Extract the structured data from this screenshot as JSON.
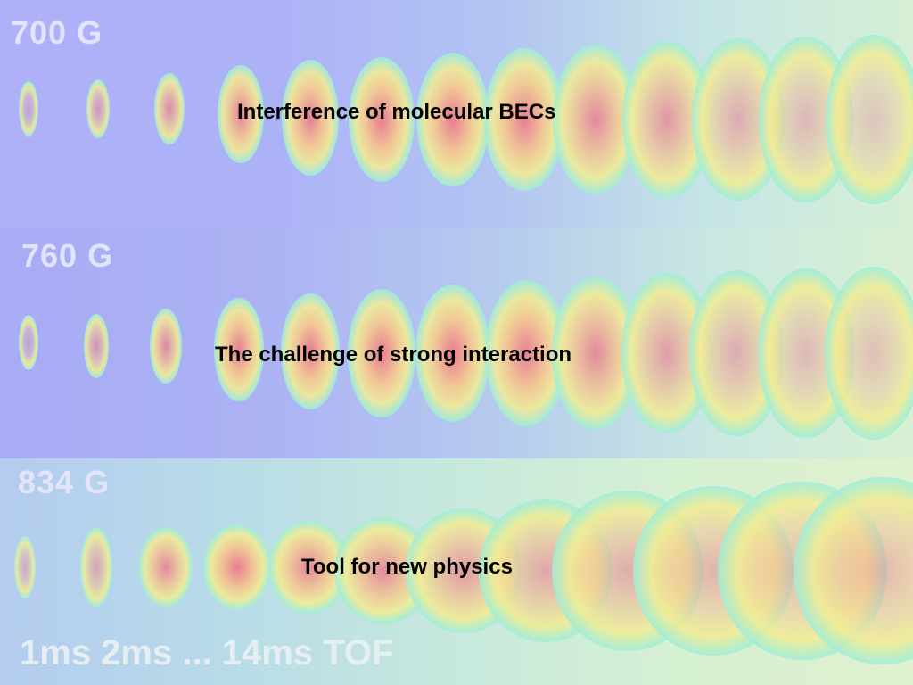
{
  "slide": {
    "rows": [
      {
        "field_label": "700 G",
        "caption": "Interference of molecular BECs"
      },
      {
        "field_label": "760 G",
        "caption": "The challenge of strong interaction"
      },
      {
        "field_label": "834 G",
        "caption": "Tool for new physics"
      }
    ],
    "tof_label": "1ms 2ms ... 14ms TOF"
  }
}
